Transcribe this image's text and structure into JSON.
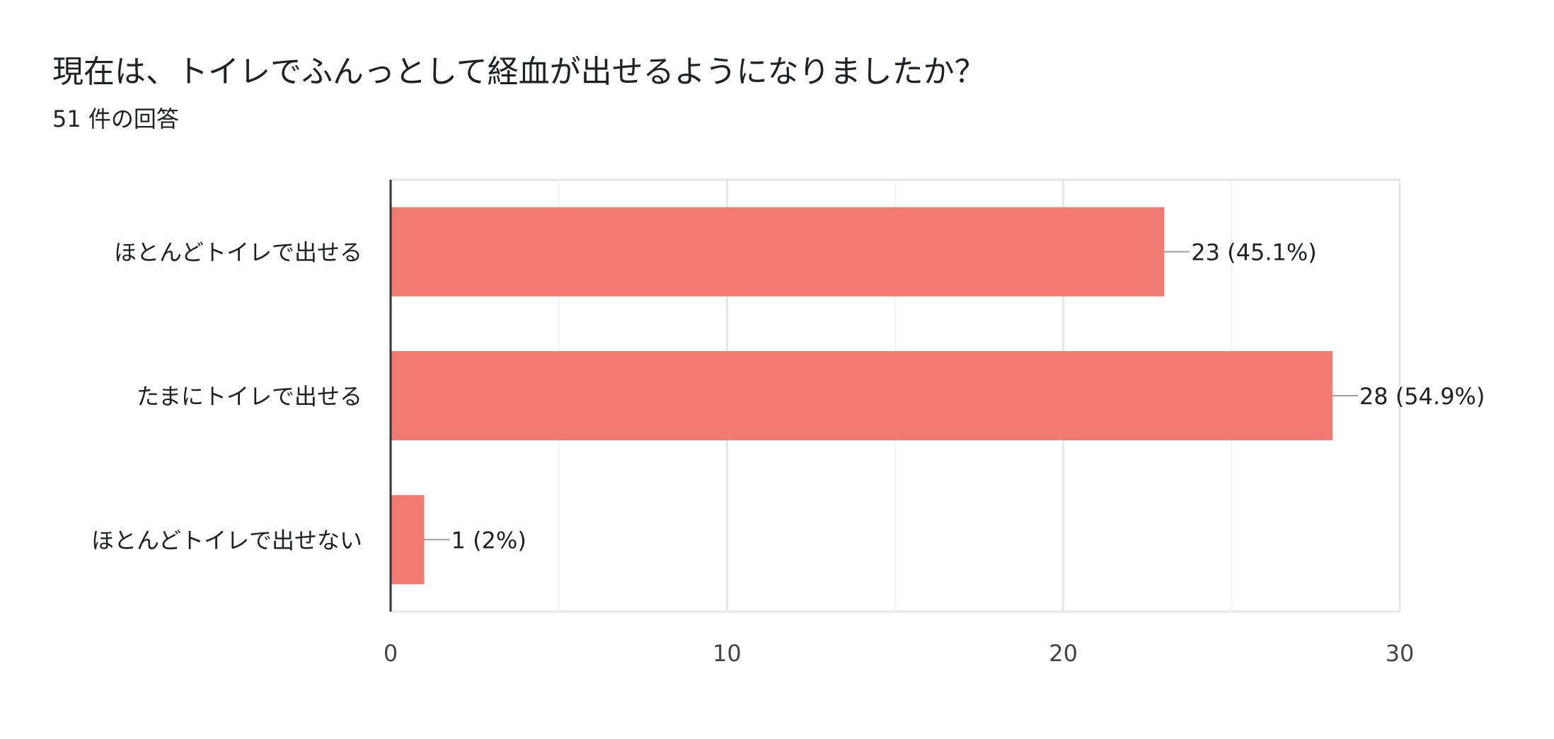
{
  "header": {
    "title": "現在は、トイレでふんっとして経血が出せるようになりましたか？",
    "response_count": "51 件の回答"
  },
  "chart_data": {
    "type": "bar",
    "orientation": "horizontal",
    "categories": [
      "ほとんどトイレで出せる",
      "たまにトイレで出せる",
      "ほとんどトイレで出せない"
    ],
    "values": [
      23,
      28,
      1
    ],
    "data_labels": [
      "23 (45.1%)",
      "28 (54.9%)",
      "1 (2%)"
    ],
    "xlim": [
      0,
      30
    ],
    "x_ticks": [
      0,
      10,
      20,
      30
    ],
    "x_tick_labels": [
      "0",
      "10",
      "20",
      "30"
    ],
    "minor_gridlines": [
      5,
      15,
      25
    ],
    "grid": true,
    "bar_color": "#f27b71",
    "legend": "none"
  }
}
